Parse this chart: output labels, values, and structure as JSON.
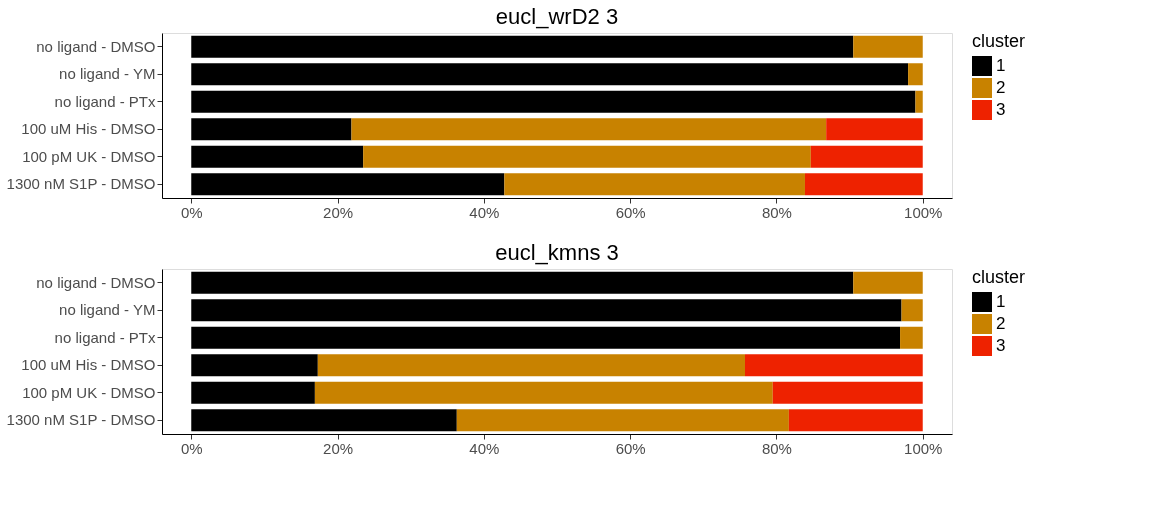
{
  "chart_data": [
    {
      "type": "bar",
      "orientation": "horizontal",
      "stacked": true,
      "title": "eucl_wrD2 3",
      "legend_title": "cluster",
      "legend": "right",
      "grid": false,
      "categories": [
        "no ligand - DMSO",
        "no ligand - YM",
        "no ligand - PTx",
        "100 uM His - DMSO",
        "100 pM UK - DMSO",
        "1300 nM S1P - DMSO"
      ],
      "xlim": [
        -4,
        104
      ],
      "xticks": [
        {
          "value": 0,
          "label": "0%"
        },
        {
          "value": 20,
          "label": "20%"
        },
        {
          "value": 40,
          "label": "40%"
        },
        {
          "value": 60,
          "label": "60%"
        },
        {
          "value": 80,
          "label": "80%"
        },
        {
          "value": 100,
          "label": "100%"
        }
      ],
      "series": [
        {
          "name": "1",
          "color": "#000000",
          "values": [
            90.5,
            98.0,
            99.0,
            21.9,
            23.5,
            42.8
          ]
        },
        {
          "name": "2",
          "color": "#c88200",
          "values": [
            9.5,
            2.0,
            1.0,
            64.9,
            61.2,
            41.1
          ]
        },
        {
          "name": "3",
          "color": "#ee2200",
          "values": [
            0,
            0,
            0,
            13.2,
            15.3,
            16.1
          ]
        }
      ]
    },
    {
      "type": "bar",
      "orientation": "horizontal",
      "stacked": true,
      "title": "eucl_kmns 3",
      "legend_title": "cluster",
      "legend": "right",
      "grid": false,
      "categories": [
        "no ligand - DMSO",
        "no ligand - YM",
        "no ligand - PTx",
        "100 uM His - DMSO",
        "100 pM UK - DMSO",
        "1300 nM S1P - DMSO"
      ],
      "xlim": [
        -4,
        104
      ],
      "xticks": [
        {
          "value": 0,
          "label": "0%"
        },
        {
          "value": 20,
          "label": "20%"
        },
        {
          "value": 40,
          "label": "40%"
        },
        {
          "value": 60,
          "label": "60%"
        },
        {
          "value": 80,
          "label": "80%"
        },
        {
          "value": 100,
          "label": "100%"
        }
      ],
      "series": [
        {
          "name": "1",
          "color": "#000000",
          "values": [
            90.5,
            97.1,
            96.9,
            17.3,
            16.9,
            36.3
          ]
        },
        {
          "name": "2",
          "color": "#c88200",
          "values": [
            9.5,
            2.9,
            3.1,
            58.4,
            62.6,
            45.4
          ]
        },
        {
          "name": "3",
          "color": "#ee2200",
          "values": [
            0,
            0,
            0,
            24.3,
            20.5,
            18.3
          ]
        }
      ]
    }
  ]
}
